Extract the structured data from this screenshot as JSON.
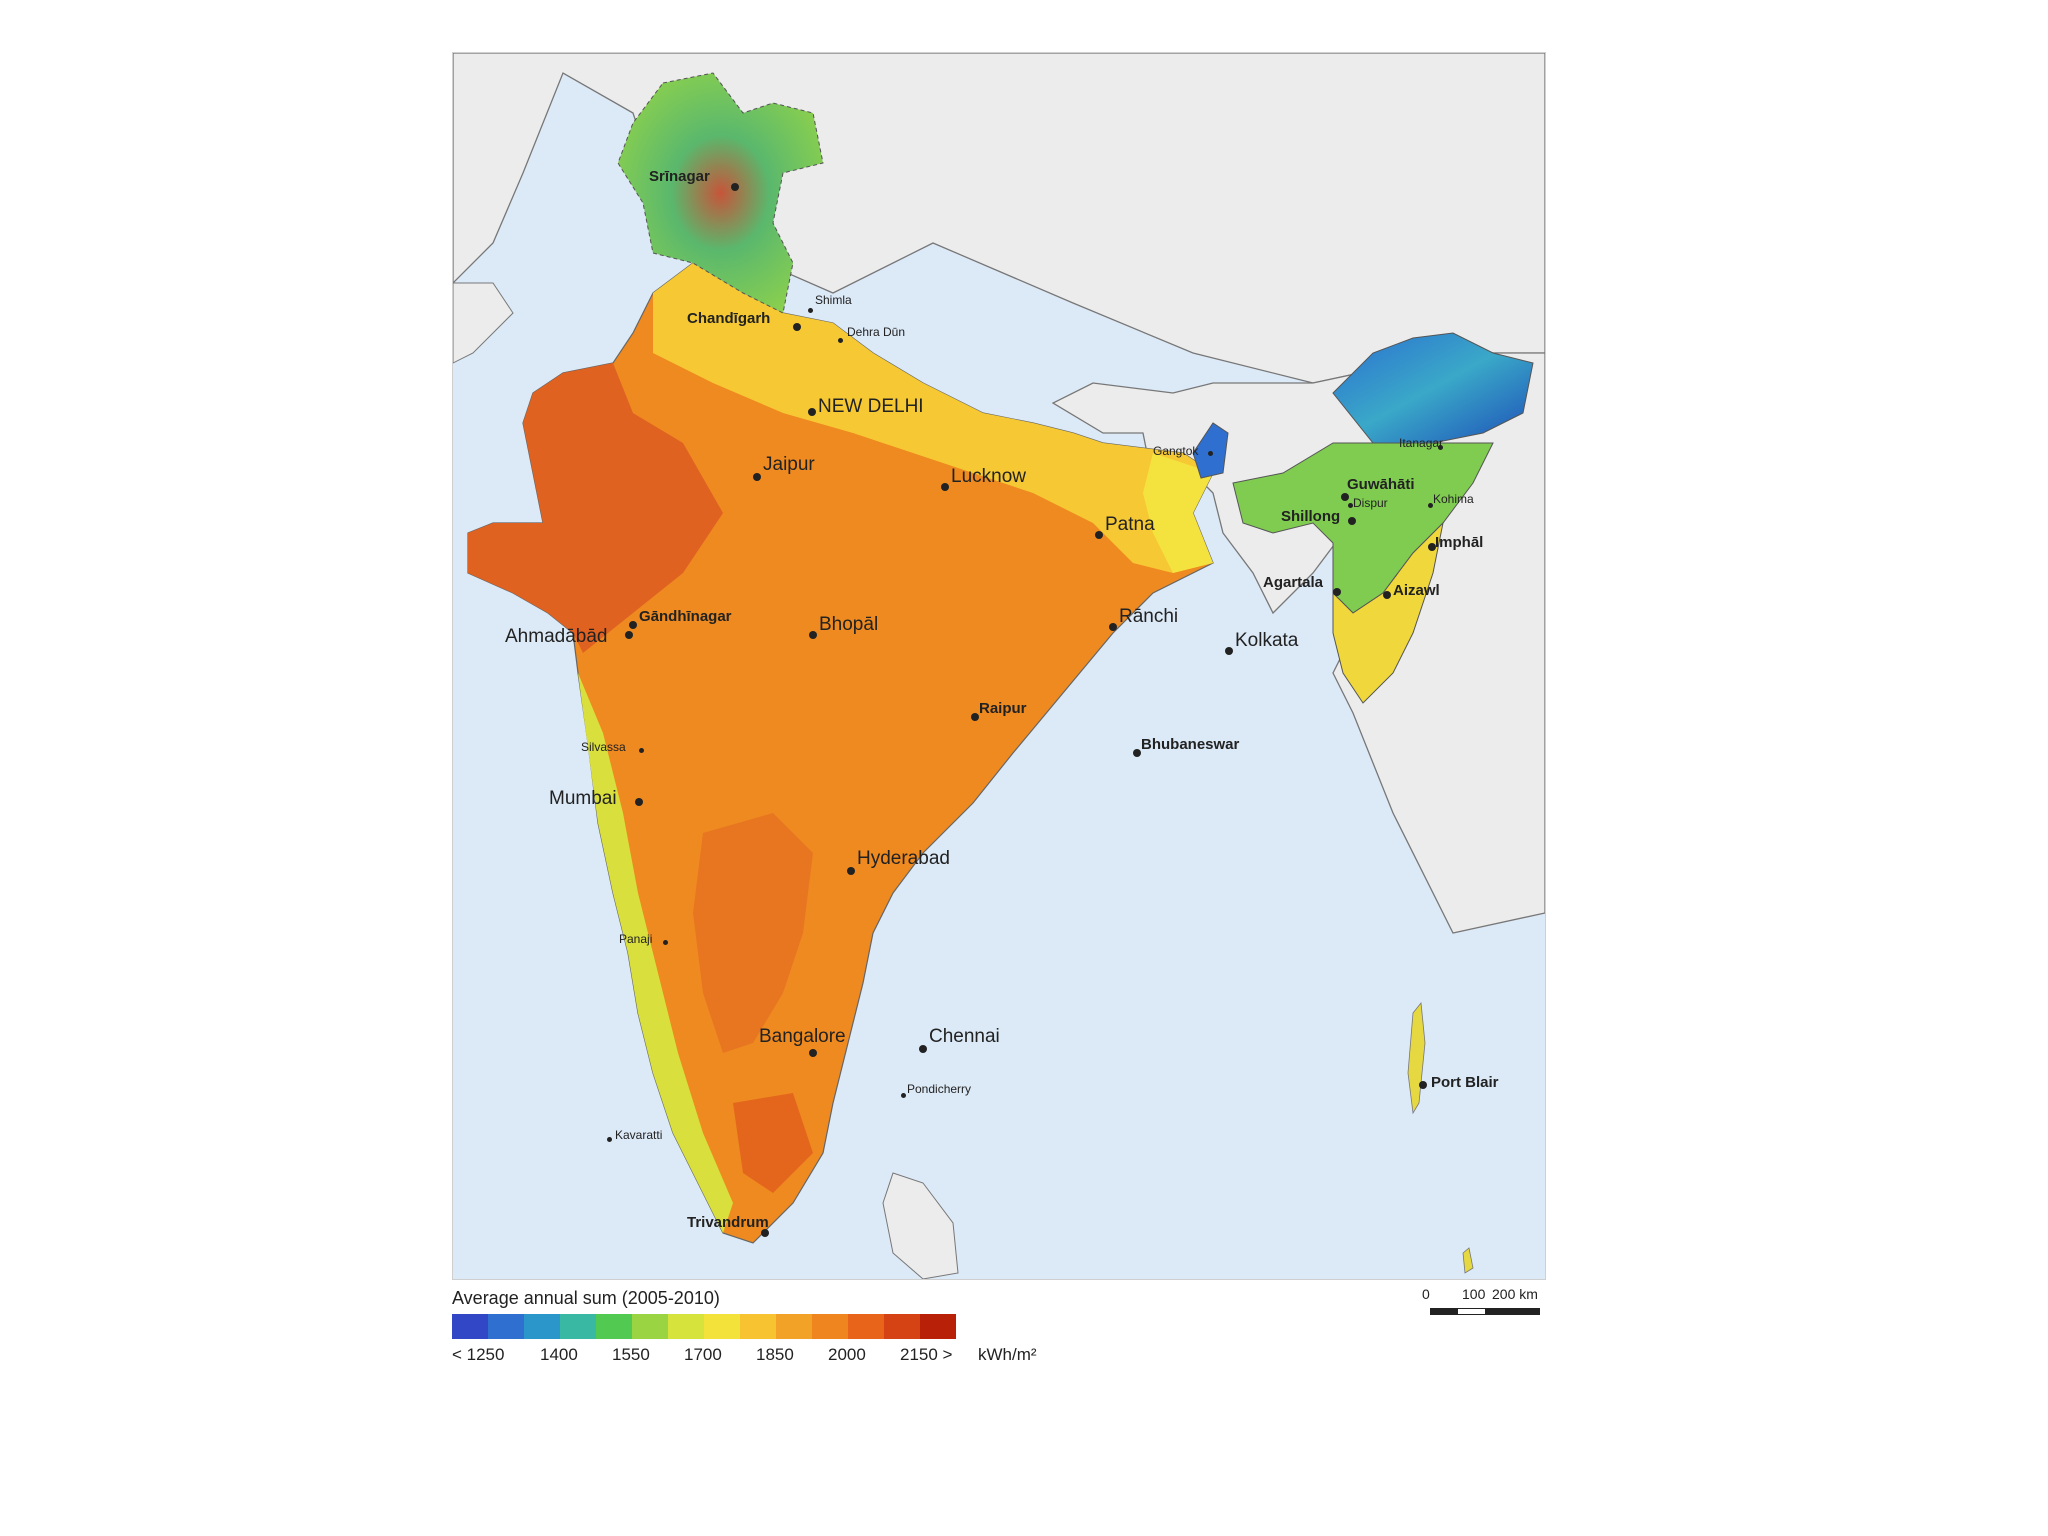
{
  "legend": {
    "title": "Average annual sum (2005-2010)",
    "unit": "kWh/m²",
    "ticks": [
      "< 1250",
      "1400",
      "1550",
      "1700",
      "1850",
      "2000",
      "2150 >"
    ],
    "colors": [
      "#3147c6",
      "#2e6fd0",
      "#2a96c9",
      "#39b8a4",
      "#52c950",
      "#9ad442",
      "#d6e33c",
      "#f3e23a",
      "#f7c330",
      "#f2a226",
      "#ee851f",
      "#e8641a",
      "#d54213",
      "#b82008"
    ]
  },
  "scale": {
    "labels": [
      "0",
      "100",
      "200 km"
    ]
  },
  "colors": {
    "sea": "#dce9f7",
    "land_neighbor": "#ececec",
    "border": "#555555"
  },
  "cities": [
    {
      "name": "Srīnagar",
      "size": "mid"
    },
    {
      "name": "Shimla",
      "size": "small"
    },
    {
      "name": "Chandīgarh",
      "size": "mid"
    },
    {
      "name": "Dehra Dūn",
      "size": "small"
    },
    {
      "name": "NEW DELHI",
      "size": "big"
    },
    {
      "name": "Jaipur",
      "size": "big"
    },
    {
      "name": "Lucknow",
      "size": "big"
    },
    {
      "name": "Patna",
      "size": "big"
    },
    {
      "name": "Gangtok",
      "size": "small"
    },
    {
      "name": "Itanagar",
      "size": "small"
    },
    {
      "name": "Guwāhāti",
      "size": "mid"
    },
    {
      "name": "Dispur",
      "size": "small"
    },
    {
      "name": "Kohima",
      "size": "small"
    },
    {
      "name": "Shillong",
      "size": "mid"
    },
    {
      "name": "Imphāl",
      "size": "mid"
    },
    {
      "name": "Agartala",
      "size": "mid"
    },
    {
      "name": "Aizawl",
      "size": "mid"
    },
    {
      "name": "Gāndhīnagar",
      "size": "mid"
    },
    {
      "name": "Ahmadābād",
      "size": "big"
    },
    {
      "name": "Bhopāl",
      "size": "big"
    },
    {
      "name": "Rānchi",
      "size": "big"
    },
    {
      "name": "Kolkata",
      "size": "big"
    },
    {
      "name": "Raipur",
      "size": "mid"
    },
    {
      "name": "Silvassa",
      "size": "small"
    },
    {
      "name": "Bhubaneswar",
      "size": "mid"
    },
    {
      "name": "Mumbai",
      "size": "big"
    },
    {
      "name": "Hyderabad",
      "size": "big"
    },
    {
      "name": "Panaji",
      "size": "small"
    },
    {
      "name": "Bangalore",
      "size": "big"
    },
    {
      "name": "Chennai",
      "size": "big"
    },
    {
      "name": "Pondicherry",
      "size": "small"
    },
    {
      "name": "Kavaratti",
      "size": "small"
    },
    {
      "name": "Port Blair",
      "size": "mid"
    },
    {
      "name": "Trivandrum",
      "size": "mid"
    }
  ]
}
